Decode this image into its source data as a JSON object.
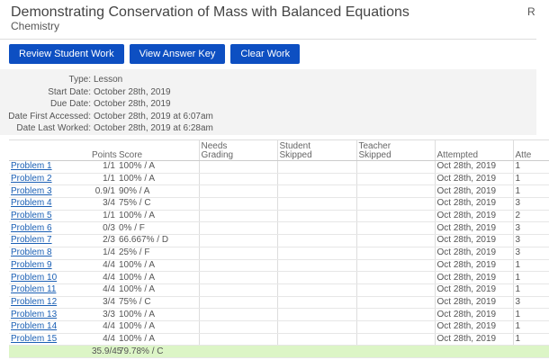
{
  "header": {
    "title": "Demonstrating Conservation of Mass with Balanced Equations",
    "subtitle": "Chemistry",
    "corner": "R"
  },
  "buttons": [
    "Review Student Work",
    "View Answer Key",
    "Clear Work"
  ],
  "info": [
    {
      "label": "Type:",
      "value": "Lesson"
    },
    {
      "label": "Start Date:",
      "value": "October 28th, 2019"
    },
    {
      "label": "Due Date:",
      "value": "October 28th, 2019"
    },
    {
      "label": "Date First Accessed:",
      "value": "October 28th, 2019 at 6:07am"
    },
    {
      "label": "Date Last Worked:",
      "value": "October 28th, 2019 at 6:28am"
    }
  ],
  "table": {
    "columns": [
      "Points",
      "Score",
      "Needs Grading",
      "Student Skipped",
      "Teacher Skipped",
      "Attempted",
      "Atte"
    ],
    "rows": [
      {
        "problem": "Problem 1",
        "points": "1/1",
        "score": "100% / A",
        "attempted": "Oct 28th, 2019",
        "attempts": "1"
      },
      {
        "problem": "Problem 2",
        "points": "1/1",
        "score": "100% / A",
        "attempted": "Oct 28th, 2019",
        "attempts": "1"
      },
      {
        "problem": "Problem 3",
        "points": "0.9/1",
        "score": "90% / A",
        "attempted": "Oct 28th, 2019",
        "attempts": "1"
      },
      {
        "problem": "Problem 4",
        "points": "3/4",
        "score": "75% / C",
        "attempted": "Oct 28th, 2019",
        "attempts": "3"
      },
      {
        "problem": "Problem 5",
        "points": "1/1",
        "score": "100% / A",
        "attempted": "Oct 28th, 2019",
        "attempts": "2"
      },
      {
        "problem": "Problem 6",
        "points": "0/3",
        "score": "0% / F",
        "attempted": "Oct 28th, 2019",
        "attempts": "3"
      },
      {
        "problem": "Problem 7",
        "points": "2/3",
        "score": "66.667% / D",
        "attempted": "Oct 28th, 2019",
        "attempts": "3"
      },
      {
        "problem": "Problem 8",
        "points": "1/4",
        "score": "25% / F",
        "attempted": "Oct 28th, 2019",
        "attempts": "3"
      },
      {
        "problem": "Problem 9",
        "points": "4/4",
        "score": "100% / A",
        "attempted": "Oct 28th, 2019",
        "attempts": "1"
      },
      {
        "problem": "Problem 10",
        "points": "4/4",
        "score": "100% / A",
        "attempted": "Oct 28th, 2019",
        "attempts": "1"
      },
      {
        "problem": "Problem 11",
        "points": "4/4",
        "score": "100% / A",
        "attempted": "Oct 28th, 2019",
        "attempts": "1"
      },
      {
        "problem": "Problem 12",
        "points": "3/4",
        "score": "75% / C",
        "attempted": "Oct 28th, 2019",
        "attempts": "3"
      },
      {
        "problem": "Problem 13",
        "points": "3/3",
        "score": "100% / A",
        "attempted": "Oct 28th, 2019",
        "attempts": "1"
      },
      {
        "problem": "Problem 14",
        "points": "4/4",
        "score": "100% / A",
        "attempted": "Oct 28th, 2019",
        "attempts": "1"
      },
      {
        "problem": "Problem 15",
        "points": "4/4",
        "score": "100% / A",
        "attempted": "Oct 28th, 2019",
        "attempts": "1"
      }
    ],
    "totals": {
      "points": "35.9/45",
      "score": "79.78% / C"
    }
  }
}
